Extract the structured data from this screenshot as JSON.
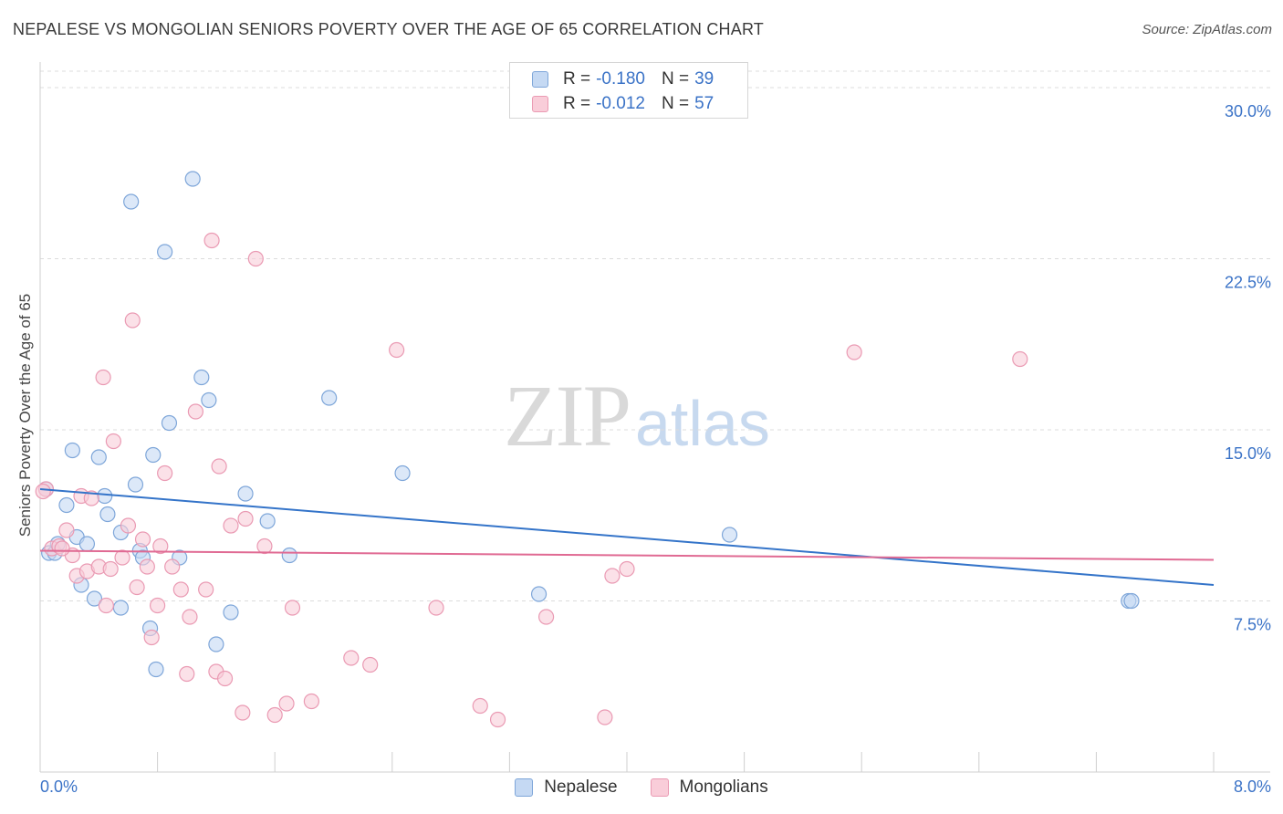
{
  "header": {
    "title": "NEPALESE VS MONGOLIAN SENIORS POVERTY OVER THE AGE OF 65 CORRELATION CHART",
    "source": "Source: ZipAtlas.com"
  },
  "watermark": {
    "zip": "ZIP",
    "atlas": "atlas"
  },
  "legend": {
    "rows": [
      {
        "r_label": "R =",
        "r_value": "-0.180",
        "n_label": "N =",
        "n_value": "39"
      },
      {
        "r_label": "R =",
        "r_value": "-0.012",
        "n_label": "N =",
        "n_value": "57"
      }
    ]
  },
  "bottom_legend": {
    "series1": "Nepalese",
    "series2": "Mongolians"
  },
  "colors": {
    "blue_fill": "#c5d9f3",
    "blue_stroke": "#7ea6d9",
    "blue_line": "#3474c9",
    "pink_fill": "#f9cdd9",
    "pink_stroke": "#ea9ab3",
    "pink_line": "#e06a93",
    "tick_text": "#3b73c7",
    "grid": "#dcdcdc"
  },
  "chart_data": {
    "type": "scatter",
    "title": "NEPALESE VS MONGOLIAN SENIORS POVERTY OVER THE AGE OF 65 CORRELATION CHART",
    "xlabel": "",
    "ylabel": "Seniors Poverty Over the Age of 65",
    "xlim": [
      0,
      8.0
    ],
    "ylim": [
      0,
      30.0
    ],
    "x_tick_labels": [
      "0.0%",
      "8.0%"
    ],
    "y_ticks": [
      7.5,
      15.0,
      22.5,
      30.0
    ],
    "y_tick_labels": [
      "7.5%",
      "15.0%",
      "22.5%",
      "30.0%"
    ],
    "grid": true,
    "series": [
      {
        "name": "Nepalese",
        "R": -0.18,
        "N": 39,
        "trend": {
          "x": [
            0.0,
            8.0
          ],
          "y": [
            12.4,
            8.2
          ]
        },
        "points": [
          [
            0.04,
            12.4
          ],
          [
            0.06,
            9.6
          ],
          [
            0.1,
            9.6
          ],
          [
            0.18,
            11.7
          ],
          [
            0.22,
            14.1
          ],
          [
            0.25,
            10.3
          ],
          [
            0.28,
            8.2
          ],
          [
            0.32,
            10.0
          ],
          [
            0.37,
            7.6
          ],
          [
            0.4,
            13.8
          ],
          [
            0.44,
            12.1
          ],
          [
            0.46,
            11.3
          ],
          [
            0.55,
            10.5
          ],
          [
            0.55,
            7.2
          ],
          [
            0.62,
            25.0
          ],
          [
            0.65,
            12.6
          ],
          [
            0.68,
            9.7
          ],
          [
            0.7,
            9.4
          ],
          [
            0.75,
            6.3
          ],
          [
            0.77,
            13.9
          ],
          [
            0.79,
            4.5
          ],
          [
            0.85,
            22.8
          ],
          [
            0.88,
            15.3
          ],
          [
            0.95,
            9.4
          ],
          [
            1.04,
            26.0
          ],
          [
            1.1,
            17.3
          ],
          [
            1.15,
            16.3
          ],
          [
            1.2,
            5.6
          ],
          [
            1.3,
            7.0
          ],
          [
            1.4,
            12.2
          ],
          [
            1.55,
            11.0
          ],
          [
            1.7,
            9.5
          ],
          [
            1.97,
            16.4
          ],
          [
            2.47,
            13.1
          ],
          [
            3.4,
            7.8
          ],
          [
            4.7,
            10.4
          ],
          [
            7.42,
            7.5
          ],
          [
            7.44,
            7.5
          ],
          [
            0.12,
            10.0
          ]
        ]
      },
      {
        "name": "Mongolians",
        "R": -0.012,
        "N": 57,
        "trend": {
          "x": [
            0.0,
            8.0
          ],
          "y": [
            9.7,
            9.3
          ]
        },
        "points": [
          [
            0.04,
            12.4
          ],
          [
            0.08,
            9.8
          ],
          [
            0.13,
            9.9
          ],
          [
            0.18,
            10.6
          ],
          [
            0.22,
            9.5
          ],
          [
            0.25,
            8.6
          ],
          [
            0.28,
            12.1
          ],
          [
            0.32,
            8.8
          ],
          [
            0.35,
            12.0
          ],
          [
            0.4,
            9.0
          ],
          [
            0.43,
            17.3
          ],
          [
            0.45,
            7.3
          ],
          [
            0.48,
            8.9
          ],
          [
            0.5,
            14.5
          ],
          [
            0.56,
            9.4
          ],
          [
            0.6,
            10.8
          ],
          [
            0.63,
            19.8
          ],
          [
            0.66,
            8.1
          ],
          [
            0.7,
            10.2
          ],
          [
            0.73,
            9.0
          ],
          [
            0.76,
            5.9
          ],
          [
            0.8,
            7.3
          ],
          [
            0.82,
            9.9
          ],
          [
            0.85,
            13.1
          ],
          [
            0.9,
            9.0
          ],
          [
            0.96,
            8.0
          ],
          [
            1.0,
            4.3
          ],
          [
            1.02,
            6.8
          ],
          [
            1.06,
            15.8
          ],
          [
            1.13,
            8.0
          ],
          [
            1.17,
            23.3
          ],
          [
            1.2,
            4.4
          ],
          [
            1.22,
            13.4
          ],
          [
            1.26,
            4.1
          ],
          [
            1.3,
            10.8
          ],
          [
            1.38,
            2.6
          ],
          [
            1.4,
            11.1
          ],
          [
            1.47,
            22.5
          ],
          [
            1.53,
            9.9
          ],
          [
            1.6,
            2.5
          ],
          [
            1.68,
            3.0
          ],
          [
            1.72,
            7.2
          ],
          [
            1.85,
            3.1
          ],
          [
            2.12,
            5.0
          ],
          [
            2.25,
            4.7
          ],
          [
            2.43,
            18.5
          ],
          [
            2.7,
            7.2
          ],
          [
            3.0,
            2.9
          ],
          [
            3.12,
            2.3
          ],
          [
            3.45,
            6.8
          ],
          [
            3.85,
            2.4
          ],
          [
            3.9,
            8.6
          ],
          [
            4.0,
            8.9
          ],
          [
            5.55,
            18.4
          ],
          [
            6.68,
            18.1
          ],
          [
            0.02,
            12.3
          ],
          [
            0.15,
            9.8
          ]
        ]
      }
    ]
  }
}
